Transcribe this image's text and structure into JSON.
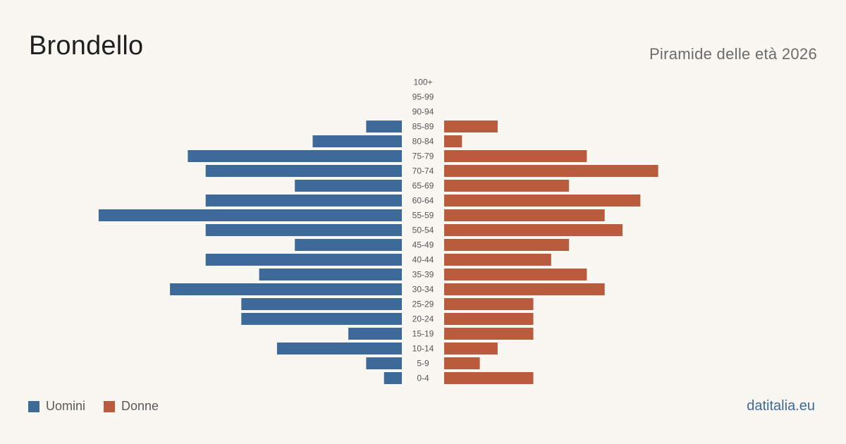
{
  "header": {
    "title": "Brondello",
    "subtitle": "Piramide delle età 2026"
  },
  "footer": {
    "source": "datitalia.eu"
  },
  "colors": {
    "men": "#3d6a99",
    "women": "#b95c3d",
    "label": "#555555",
    "source": "#3d6a99"
  },
  "chart_data": {
    "type": "bar",
    "orientation": "horizontal-population-pyramid",
    "categories": [
      "100+",
      "95-99",
      "90-94",
      "85-89",
      "80-84",
      "75-79",
      "70-74",
      "65-69",
      "60-64",
      "55-59",
      "50-54",
      "45-49",
      "40-44",
      "35-39",
      "30-34",
      "25-29",
      "20-24",
      "15-19",
      "10-14",
      "5-9",
      "0-4"
    ],
    "series": [
      {
        "name": "Uomini",
        "values": [
          0,
          0,
          0,
          2,
          5,
          12,
          11,
          6,
          11,
          17,
          11,
          6,
          11,
          8,
          13,
          9,
          9,
          3,
          7,
          2,
          1
        ]
      },
      {
        "name": "Donne",
        "values": [
          0,
          0,
          0,
          3,
          1,
          8,
          12,
          7,
          11,
          9,
          10,
          7,
          6,
          8,
          9,
          5,
          5,
          5,
          3,
          2,
          5
        ]
      }
    ],
    "legend": "bottom-left"
  }
}
